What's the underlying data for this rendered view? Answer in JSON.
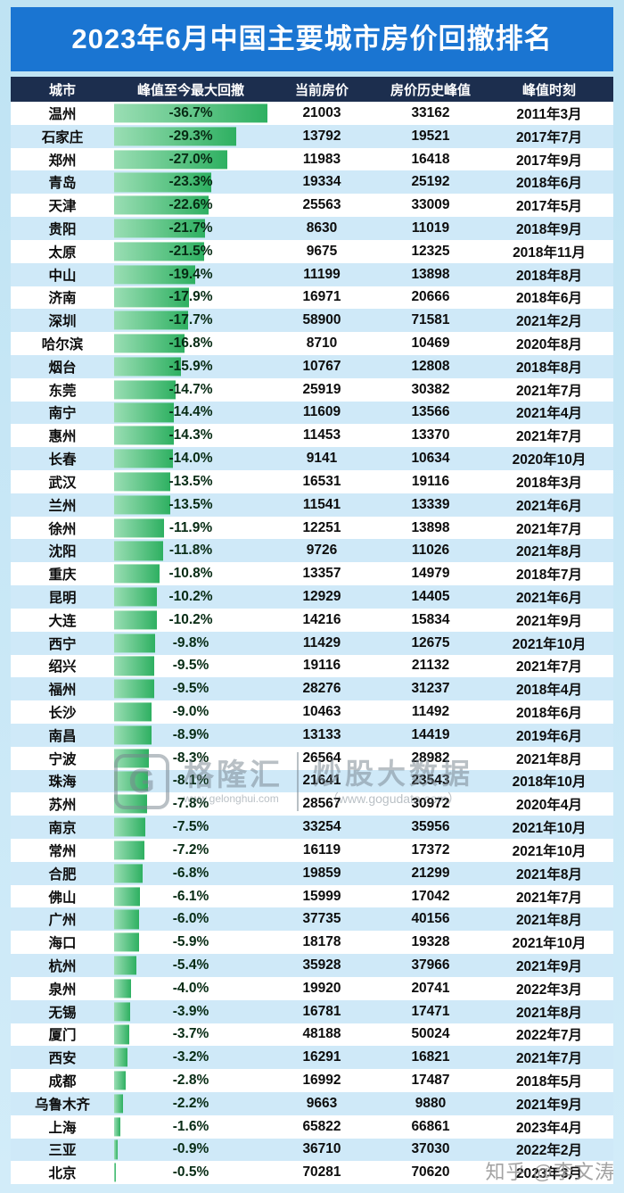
{
  "title": "2023年6月中国主要城市房价回撤排名",
  "chart_data": {
    "type": "table",
    "title": "2023年6月中国主要城市房价回撤排名",
    "columns": [
      "城市",
      "峰值至今最大回撤",
      "当前房价",
      "房价历史峰值",
      "峰值时刻"
    ],
    "bar_column_index": 1,
    "bar_max_abs_pct": 36.7,
    "rows": [
      [
        "温州",
        "-36.7%",
        "21003",
        "33162",
        "2011年3月"
      ],
      [
        "石家庄",
        "-29.3%",
        "13792",
        "19521",
        "2017年7月"
      ],
      [
        "郑州",
        "-27.0%",
        "11983",
        "16418",
        "2017年9月"
      ],
      [
        "青岛",
        "-23.3%",
        "19334",
        "25192",
        "2018年6月"
      ],
      [
        "天津",
        "-22.6%",
        "25563",
        "33009",
        "2017年5月"
      ],
      [
        "贵阳",
        "-21.7%",
        "8630",
        "11019",
        "2018年9月"
      ],
      [
        "太原",
        "-21.5%",
        "9675",
        "12325",
        "2018年11月"
      ],
      [
        "中山",
        "-19.4%",
        "11199",
        "13898",
        "2018年8月"
      ],
      [
        "济南",
        "-17.9%",
        "16971",
        "20666",
        "2018年6月"
      ],
      [
        "深圳",
        "-17.7%",
        "58900",
        "71581",
        "2021年2月"
      ],
      [
        "哈尔滨",
        "-16.8%",
        "8710",
        "10469",
        "2020年8月"
      ],
      [
        "烟台",
        "-15.9%",
        "10767",
        "12808",
        "2018年8月"
      ],
      [
        "东莞",
        "-14.7%",
        "25919",
        "30382",
        "2021年7月"
      ],
      [
        "南宁",
        "-14.4%",
        "11609",
        "13566",
        "2021年4月"
      ],
      [
        "惠州",
        "-14.3%",
        "11453",
        "13370",
        "2021年7月"
      ],
      [
        "长春",
        "-14.0%",
        "9141",
        "10634",
        "2020年10月"
      ],
      [
        "武汉",
        "-13.5%",
        "16531",
        "19116",
        "2018年3月"
      ],
      [
        "兰州",
        "-13.5%",
        "11541",
        "13339",
        "2021年6月"
      ],
      [
        "徐州",
        "-11.9%",
        "12251",
        "13898",
        "2021年7月"
      ],
      [
        "沈阳",
        "-11.8%",
        "9726",
        "11026",
        "2021年8月"
      ],
      [
        "重庆",
        "-10.8%",
        "13357",
        "14979",
        "2018年7月"
      ],
      [
        "昆明",
        "-10.2%",
        "12929",
        "14405",
        "2021年6月"
      ],
      [
        "大连",
        "-10.2%",
        "14216",
        "15834",
        "2021年9月"
      ],
      [
        "西宁",
        "-9.8%",
        "11429",
        "12675",
        "2021年10月"
      ],
      [
        "绍兴",
        "-9.5%",
        "19116",
        "21132",
        "2021年7月"
      ],
      [
        "福州",
        "-9.5%",
        "28276",
        "31237",
        "2018年4月"
      ],
      [
        "长沙",
        "-9.0%",
        "10463",
        "11492",
        "2018年6月"
      ],
      [
        "南昌",
        "-8.9%",
        "13133",
        "14419",
        "2019年6月"
      ],
      [
        "宁波",
        "-8.3%",
        "26564",
        "28982",
        "2021年8月"
      ],
      [
        "珠海",
        "-8.1%",
        "21641",
        "23543",
        "2018年10月"
      ],
      [
        "苏州",
        "-7.8%",
        "28567",
        "30972",
        "2020年4月"
      ],
      [
        "南京",
        "-7.5%",
        "33254",
        "35956",
        "2021年10月"
      ],
      [
        "常州",
        "-7.2%",
        "16119",
        "17372",
        "2021年10月"
      ],
      [
        "合肥",
        "-6.8%",
        "19859",
        "21299",
        "2021年8月"
      ],
      [
        "佛山",
        "-6.1%",
        "15999",
        "17042",
        "2021年7月"
      ],
      [
        "广州",
        "-6.0%",
        "37735",
        "40156",
        "2021年8月"
      ],
      [
        "海口",
        "-5.9%",
        "18178",
        "19328",
        "2021年10月"
      ],
      [
        "杭州",
        "-5.4%",
        "35928",
        "37966",
        "2021年9月"
      ],
      [
        "泉州",
        "-4.0%",
        "19920",
        "20741",
        "2022年3月"
      ],
      [
        "无锡",
        "-3.9%",
        "16781",
        "17471",
        "2021年8月"
      ],
      [
        "厦门",
        "-3.7%",
        "48188",
        "50024",
        "2022年7月"
      ],
      [
        "西安",
        "-3.2%",
        "16291",
        "16821",
        "2021年7月"
      ],
      [
        "成都",
        "-2.8%",
        "16992",
        "17487",
        "2018年5月"
      ],
      [
        "乌鲁木齐",
        "-2.2%",
        "9663",
        "9880",
        "2021年9月"
      ],
      [
        "上海",
        "-1.6%",
        "65822",
        "66861",
        "2023年4月"
      ],
      [
        "三亚",
        "-0.9%",
        "36710",
        "37030",
        "2022年2月"
      ],
      [
        "北京",
        "-0.5%",
        "70281",
        "70620",
        "2023年3月"
      ]
    ]
  },
  "watermarks": {
    "gelonghui": {
      "logo": "G",
      "name": "格隆汇",
      "url": "www.gelonghui.com",
      "partner": "炒股大数据",
      "partner_url": "（www.gogudata.com）"
    },
    "zhihu": "知乎 @李文涛"
  },
  "colors": {
    "title_bg": "#1a75d2",
    "header_bg": "#1c2e4e",
    "stripe": "#cfe9f8",
    "bar_start": "#9adeb4",
    "bar_end": "#2eb061",
    "frame_bg": "#bfe3f3"
  }
}
